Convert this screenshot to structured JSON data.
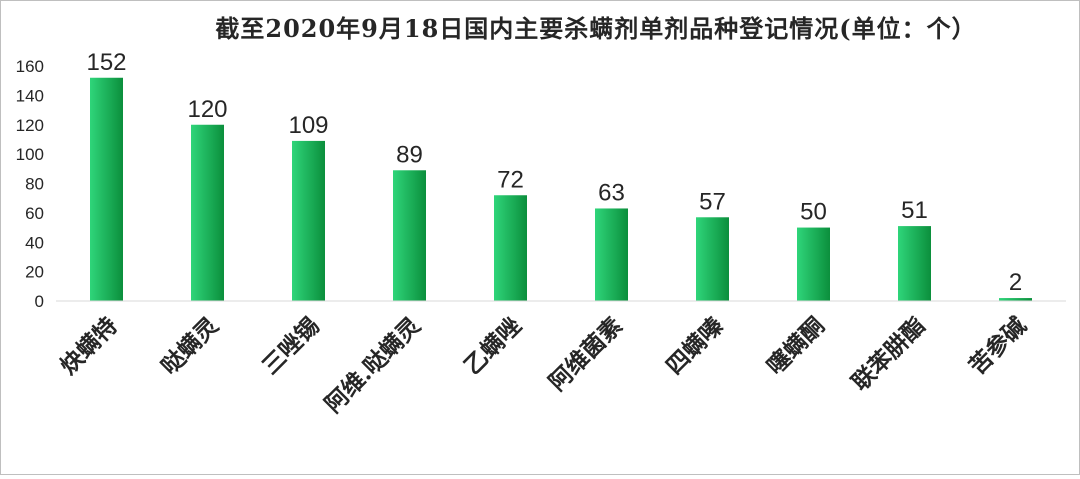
{
  "chart_data": {
    "type": "bar",
    "title": "截至2020年9月18日国内主要杀螨剂单剂品种登记情况(单位：个）",
    "categories": [
      "炔螨特",
      "哒螨灵",
      "三唑锡",
      "阿维.哒螨灵",
      "乙螨唑",
      "阿维菌素",
      "四螨嗪",
      "噻螨酮",
      "联苯肼酯",
      "苦参碱"
    ],
    "values": [
      152,
      120,
      109,
      89,
      72,
      63,
      57,
      50,
      51,
      2
    ],
    "ylim": [
      0,
      160
    ],
    "yticks": [
      0,
      20,
      40,
      60,
      80,
      100,
      120,
      140,
      160
    ],
    "grid": false,
    "legend": "none",
    "xlabel": "",
    "ylabel": "",
    "colors": {
      "bar_light": "#2fd57a",
      "bar_dark": "#0b8f3c",
      "text": "#262626",
      "axis": "#d9d9d9"
    }
  }
}
